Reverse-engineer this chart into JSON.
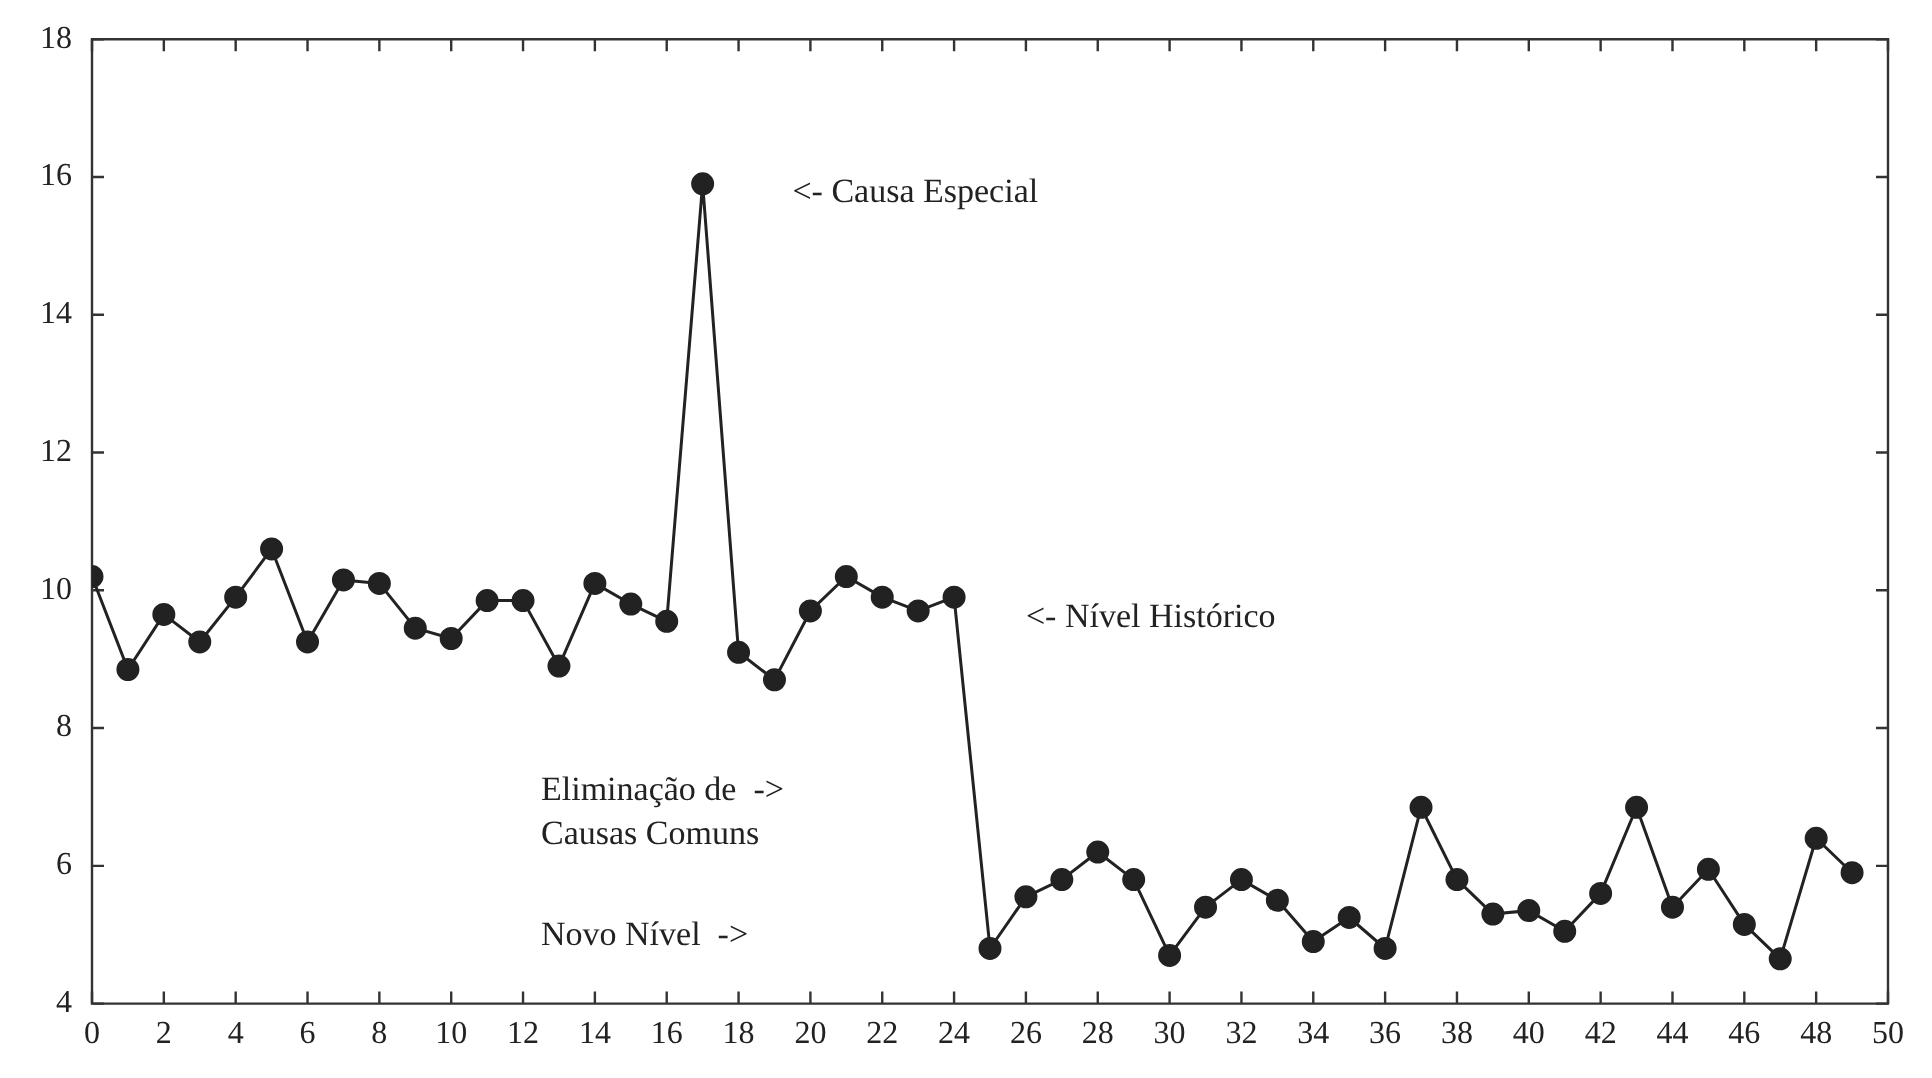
{
  "chart_data": {
    "type": "line",
    "x": [
      0,
      1,
      2,
      3,
      4,
      5,
      6,
      7,
      8,
      9,
      10,
      11,
      12,
      13,
      14,
      15,
      16,
      17,
      18,
      19,
      20,
      21,
      22,
      23,
      24,
      25,
      26,
      27,
      28,
      29,
      30,
      31,
      32,
      33,
      34,
      35,
      36,
      37,
      38,
      39,
      40,
      41,
      42,
      43,
      44,
      45,
      46,
      47,
      48,
      49
    ],
    "series": [
      {
        "color": "#222222",
        "values": [
          10.2,
          8.85,
          9.65,
          9.25,
          9.9,
          10.6,
          9.25,
          10.15,
          10.1,
          9.45,
          9.3,
          9.85,
          9.85,
          8.9,
          10.1,
          9.8,
          9.55,
          15.9,
          9.1,
          8.7,
          9.7,
          10.2,
          9.9,
          9.7,
          9.9,
          4.8,
          5.55,
          5.8,
          6.2,
          5.8,
          4.7,
          5.4,
          5.8,
          5.5,
          4.9,
          5.25,
          4.8,
          6.85,
          5.8,
          5.3,
          5.35,
          5.05,
          5.6,
          6.85,
          5.4,
          5.95,
          5.15,
          4.65,
          6.4,
          5.9
        ]
      }
    ],
    "xlim": [
      0,
      50
    ],
    "xticks": [
      0,
      2,
      4,
      6,
      8,
      10,
      12,
      14,
      16,
      18,
      20,
      22,
      24,
      26,
      28,
      30,
      32,
      34,
      36,
      38,
      40,
      42,
      44,
      46,
      48,
      50
    ],
    "ylim": [
      4,
      18
    ],
    "yticks": [
      4,
      6,
      8,
      10,
      12,
      14,
      16,
      18
    ],
    "grid": false,
    "legend": false,
    "marker": "circle",
    "line_style": "solid",
    "annotations": [
      "<- Causa Especial",
      "<- Nível Histórico",
      "Eliminação de  ->\nCausas Comuns",
      "Novo Nível  ->"
    ]
  }
}
